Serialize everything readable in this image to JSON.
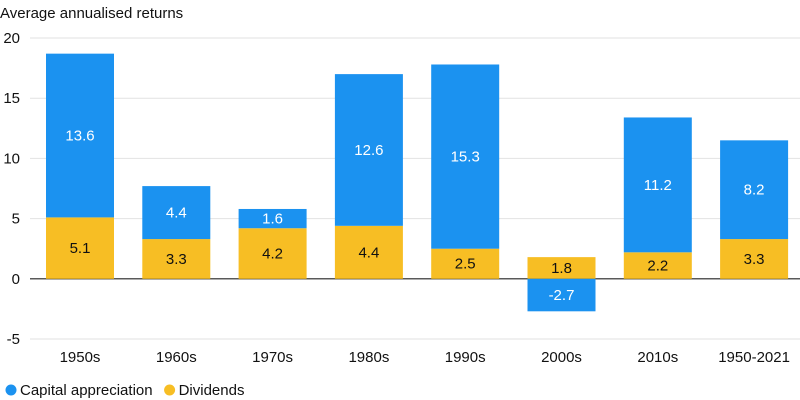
{
  "chart_data": {
    "type": "bar",
    "stacked": true,
    "title": "Average annualised returns",
    "categories": [
      "1950s",
      "1960s",
      "1970s",
      "1980s",
      "1990s",
      "2000s",
      "2010s",
      "1950-2021"
    ],
    "series": [
      {
        "name": "Dividends",
        "color": "#F7BE24",
        "values": [
          5.1,
          3.3,
          4.2,
          4.4,
          2.5,
          1.8,
          2.2,
          3.3
        ],
        "labels": [
          "5.1",
          "3.3",
          "4.2",
          "4.4",
          "2.5",
          "1.8",
          "2.2",
          "3.3"
        ],
        "label_color": "#111111"
      },
      {
        "name": "Capital appreciation",
        "color": "#1B92F0",
        "values": [
          13.6,
          4.4,
          1.6,
          12.6,
          15.3,
          -2.7,
          11.2,
          8.2
        ],
        "labels": [
          "13.6",
          "4.4",
          "1.6",
          "12.6",
          "15.3",
          "-2.7",
          "11.2",
          "8.2"
        ],
        "label_color": "#ffffff"
      }
    ],
    "ylim": [
      -5,
      20
    ],
    "yticks": [
      -5,
      0,
      5,
      10,
      15,
      20
    ],
    "ytick_labels": [
      "-5",
      "0",
      "5",
      "10",
      "15",
      "20"
    ],
    "grid": true,
    "legend": "bottom-left",
    "xlabel": "",
    "ylabel": ""
  }
}
